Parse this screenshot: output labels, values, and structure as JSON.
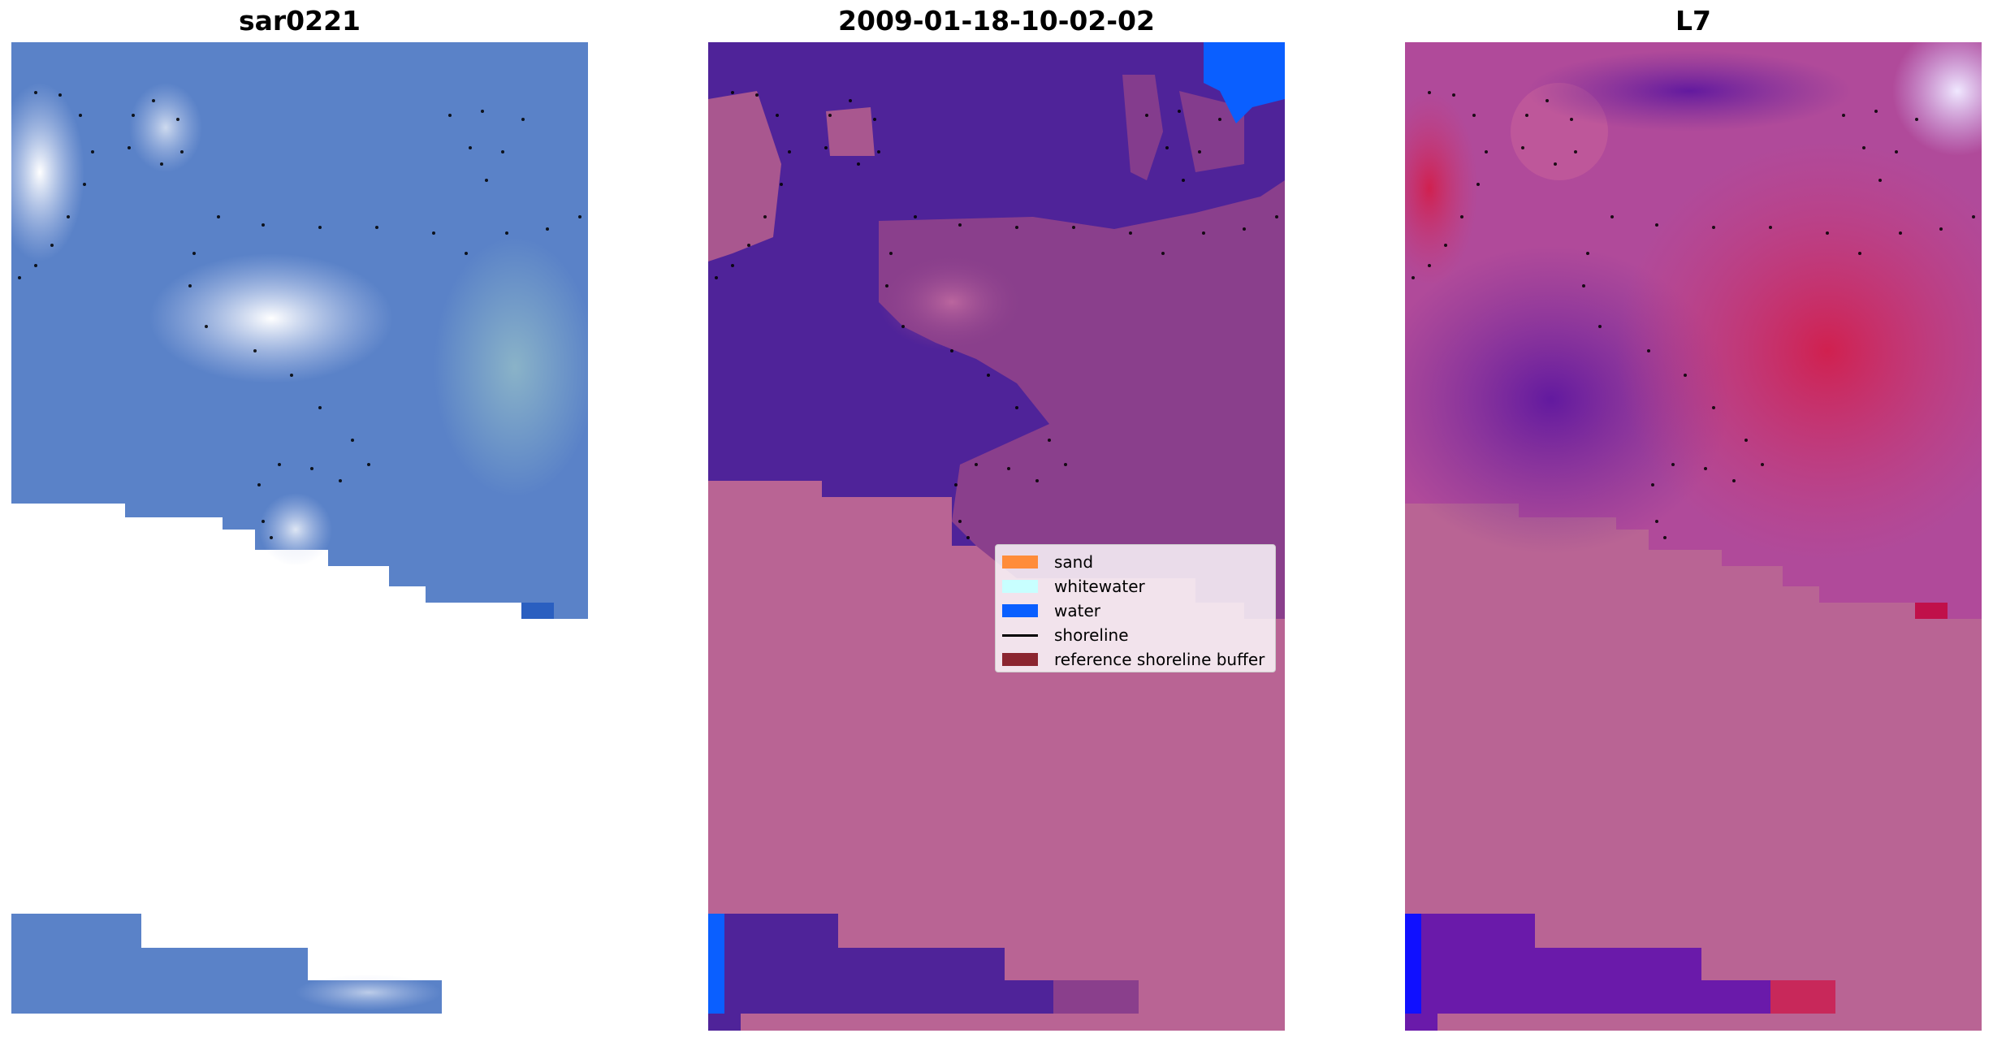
{
  "panels": [
    {
      "title": "sar0221"
    },
    {
      "title": "2009-01-18-10-02-02"
    },
    {
      "title": "L7"
    }
  ],
  "legend": [
    {
      "label": "sand",
      "color": "#ff8c3a",
      "kind": "patch"
    },
    {
      "label": "whitewater",
      "color": "#c8ffff",
      "kind": "patch"
    },
    {
      "label": "water",
      "color": "#0a5fff",
      "kind": "patch"
    },
    {
      "label": "shoreline",
      "color": "#000000",
      "kind": "line"
    },
    {
      "label": "reference shoreline buffer",
      "color": "#8b2530",
      "kind": "patch"
    }
  ],
  "colors": {
    "rgb_blue": "#5a82c8",
    "water_class": "#4f2399",
    "buffer_class": "#b96494",
    "water_legend": "#0a5fff",
    "mndwi_high": "#c81e50",
    "mndwi_low": "#5a14a0"
  }
}
